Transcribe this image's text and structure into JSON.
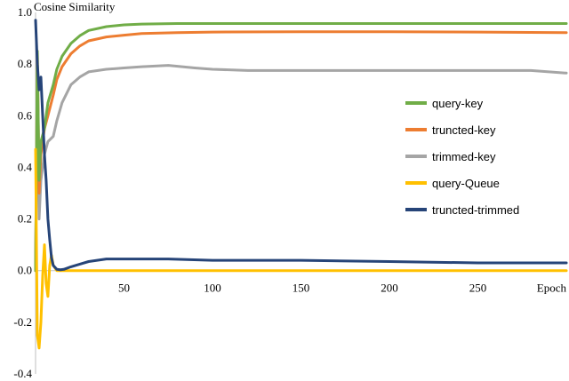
{
  "chart_data": {
    "type": "line",
    "xlabel": "Epoch",
    "ylabel": "Cosine Similarity",
    "xlim": [
      0,
      300
    ],
    "ylim": [
      -0.4,
      1.0
    ],
    "xticks": [
      50,
      100,
      150,
      200,
      250
    ],
    "yticks": [
      1.0,
      0.8,
      0.6,
      0.4,
      0.2,
      0.0,
      -0.2,
      -0.4
    ],
    "ytick_labels": [
      "1.0",
      "0.8",
      "0.6",
      "0.4",
      "0.2",
      "0.0",
      "-0.2",
      "-0.4"
    ],
    "grid": false,
    "legend_position": "right",
    "series": [
      {
        "name": "query-key",
        "color": "#70ad47",
        "x": [
          0,
          1,
          2,
          3,
          5,
          7,
          10,
          12,
          15,
          20,
          25,
          30,
          40,
          50,
          60,
          80,
          100,
          150,
          200,
          250,
          300
        ],
        "y": [
          0.0,
          0.85,
          0.35,
          0.5,
          0.55,
          0.65,
          0.72,
          0.78,
          0.83,
          0.88,
          0.91,
          0.93,
          0.945,
          0.952,
          0.955,
          0.957,
          0.957,
          0.957,
          0.957,
          0.957,
          0.957
        ]
      },
      {
        "name": "truncted-key",
        "color": "#ed7d31",
        "x": [
          0,
          1,
          2,
          3,
          5,
          7,
          10,
          12,
          15,
          20,
          25,
          30,
          40,
          50,
          60,
          80,
          100,
          150,
          200,
          250,
          300
        ],
        "y": [
          0.0,
          0.85,
          0.3,
          0.45,
          0.55,
          0.6,
          0.68,
          0.74,
          0.79,
          0.84,
          0.87,
          0.89,
          0.905,
          0.912,
          0.918,
          0.922,
          0.924,
          0.925,
          0.925,
          0.924,
          0.922
        ]
      },
      {
        "name": "trimmed-key",
        "color": "#a5a5a5",
        "x": [
          0,
          1,
          2,
          3,
          5,
          7,
          10,
          12,
          15,
          20,
          25,
          30,
          40,
          50,
          60,
          75,
          90,
          100,
          120,
          150,
          180,
          200,
          230,
          250,
          280,
          300
        ],
        "y": [
          0.0,
          0.8,
          0.2,
          0.35,
          0.45,
          0.5,
          0.52,
          0.58,
          0.65,
          0.72,
          0.75,
          0.77,
          0.78,
          0.785,
          0.79,
          0.795,
          0.785,
          0.78,
          0.775,
          0.775,
          0.775,
          0.775,
          0.775,
          0.775,
          0.775,
          0.765
        ]
      },
      {
        "name": "query-Queue",
        "color": "#ffc000",
        "x": [
          0,
          1,
          2,
          3,
          4,
          5,
          6,
          7,
          8,
          9,
          10,
          12,
          15,
          20,
          30,
          50,
          100,
          150,
          200,
          250,
          300
        ],
        "y": [
          0.47,
          -0.25,
          -0.3,
          -0.2,
          -0.02,
          0.1,
          -0.05,
          -0.1,
          0.02,
          0.06,
          0.02,
          0.0,
          0.0,
          0.0,
          0.0,
          0.0,
          0.0,
          0.0,
          0.0,
          0.0,
          0.0
        ]
      },
      {
        "name": "truncted-trimmed",
        "color": "#264478",
        "x": [
          0,
          1,
          2,
          3,
          4,
          5,
          6,
          7,
          8,
          9,
          10,
          12,
          14,
          16,
          20,
          25,
          30,
          40,
          50,
          60,
          75,
          100,
          150,
          200,
          250,
          300
        ],
        "y": [
          0.97,
          0.8,
          0.7,
          0.75,
          0.6,
          0.45,
          0.35,
          0.2,
          0.12,
          0.05,
          0.02,
          0.005,
          0.003,
          0.005,
          0.015,
          0.025,
          0.035,
          0.045,
          0.045,
          0.045,
          0.045,
          0.04,
          0.04,
          0.035,
          0.03,
          0.03
        ]
      }
    ]
  }
}
